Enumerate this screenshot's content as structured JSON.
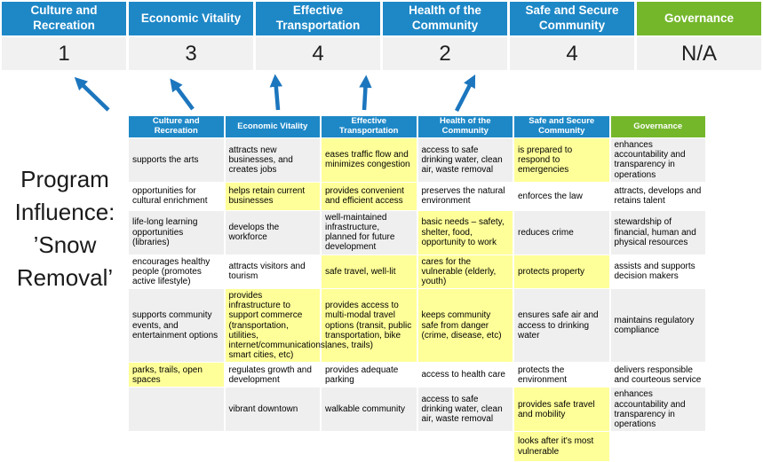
{
  "colors": {
    "header_blue": "#1E88C7",
    "header_green": "#74B72B",
    "arrow_blue": "#1C76BE",
    "highlight_yellow": "#FFFF99",
    "row_alt_gray": "#EFEFEF",
    "score_row_bg": "#F1F1F1"
  },
  "program_title": {
    "lines": [
      "Program",
      "Influence:",
      "’Snow",
      "Removal’"
    ]
  },
  "priority_scores": {
    "columns": [
      {
        "label": "Culture and Recreation",
        "score": "1",
        "theme": "blue"
      },
      {
        "label": "Economic Vitality",
        "score": "3",
        "theme": "blue"
      },
      {
        "label": "Effective Transportation",
        "score": "4",
        "theme": "blue"
      },
      {
        "label": "Health of the Community",
        "score": "2",
        "theme": "blue"
      },
      {
        "label": "Safe and Secure Community",
        "score": "4",
        "theme": "blue"
      },
      {
        "label": "Governance",
        "score": "N/A",
        "theme": "green"
      }
    ]
  },
  "matrix": {
    "headers": [
      {
        "label": "Culture and Recreation",
        "theme": "blue"
      },
      {
        "label": "Economic Vitality",
        "theme": "blue"
      },
      {
        "label": "Effective Transportation",
        "theme": "blue"
      },
      {
        "label": "Health of the Community",
        "theme": "blue"
      },
      {
        "label": "Safe and Secure Community",
        "theme": "blue"
      },
      {
        "label": "Governance",
        "theme": "green"
      }
    ],
    "rows": [
      [
        {
          "text": "supports the arts",
          "highlighted": false
        },
        {
          "text": "attracts new businesses, and creates jobs",
          "highlighted": false
        },
        {
          "text": "eases traffic flow and minimizes congestion",
          "highlighted": true
        },
        {
          "text": "access to safe drinking water, clean air, waste removal",
          "highlighted": false
        },
        {
          "text": "is prepared to respond to emergencies",
          "highlighted": true
        },
        {
          "text": "enhances accountability and transparency in operations",
          "highlighted": false
        }
      ],
      [
        {
          "text": "opportunities for cultural enrichment",
          "highlighted": false
        },
        {
          "text": "helps retain current businesses",
          "highlighted": true
        },
        {
          "text": "provides convenient and efficient access",
          "highlighted": true
        },
        {
          "text": "preserves the natural environment",
          "highlighted": false
        },
        {
          "text": "enforces the law",
          "highlighted": false
        },
        {
          "text": "attracts, develops and retains talent",
          "highlighted": false
        }
      ],
      [
        {
          "text": "life-long learning opportunities (libraries)",
          "highlighted": false
        },
        {
          "text": "develops the workforce",
          "highlighted": false
        },
        {
          "text": "well-maintained infrastructure, planned for future development",
          "highlighted": false
        },
        {
          "text": "basic needs – safety, shelter, food, opportunity to work",
          "highlighted": true
        },
        {
          "text": "reduces crime",
          "highlighted": false
        },
        {
          "text": "stewardship of financial, human and physical resources",
          "highlighted": false
        }
      ],
      [
        {
          "text": "encourages healthy people (promotes active lifestyle)",
          "highlighted": false
        },
        {
          "text": "attracts visitors and tourism",
          "highlighted": false
        },
        {
          "text": "safe travel, well-lit",
          "highlighted": true
        },
        {
          "text": "cares for the vulnerable (elderly, youth)",
          "highlighted": true
        },
        {
          "text": "protects property",
          "highlighted": true
        },
        {
          "text": "assists and supports decision makers",
          "highlighted": false
        }
      ],
      [
        {
          "text": "supports community events, and entertainment options",
          "highlighted": false
        },
        {
          "text": "provides infrastructure to support commerce (transportation, utilities, internet/communications, smart cities, etc)",
          "highlighted": true
        },
        {
          "text": "provides access to multi-modal travel options (transit, public transportation, bike lanes, trails)",
          "highlighted": true
        },
        {
          "text": "keeps community safe from danger (crime, disease, etc)",
          "highlighted": true
        },
        {
          "text": "ensures safe air and access to drinking water",
          "highlighted": false
        },
        {
          "text": "maintains regulatory compliance",
          "highlighted": false
        }
      ],
      [
        {
          "text": "parks, trails, open spaces",
          "highlighted": true
        },
        {
          "text": "regulates growth and development",
          "highlighted": false
        },
        {
          "text": "provides adequate parking",
          "highlighted": false
        },
        {
          "text": "access to health care",
          "highlighted": false
        },
        {
          "text": "protects the environment",
          "highlighted": false
        },
        {
          "text": "delivers responsible and courteous service",
          "highlighted": false
        }
      ],
      [
        {
          "text": "",
          "highlighted": false
        },
        {
          "text": "vibrant downtown",
          "highlighted": false
        },
        {
          "text": "walkable community",
          "highlighted": false
        },
        {
          "text": "access to safe drinking water, clean air, waste removal",
          "highlighted": false
        },
        {
          "text": "provides safe travel and mobility",
          "highlighted": true
        },
        {
          "text": "enhances accountability and transparency in operations",
          "highlighted": false
        }
      ],
      [
        {
          "text": "",
          "highlighted": false
        },
        {
          "text": "",
          "highlighted": false
        },
        {
          "text": "",
          "highlighted": false
        },
        {
          "text": "",
          "highlighted": false
        },
        {
          "text": "looks after it's most vulnerable",
          "highlighted": true
        },
        {
          "text": "",
          "highlighted": false
        }
      ]
    ]
  }
}
